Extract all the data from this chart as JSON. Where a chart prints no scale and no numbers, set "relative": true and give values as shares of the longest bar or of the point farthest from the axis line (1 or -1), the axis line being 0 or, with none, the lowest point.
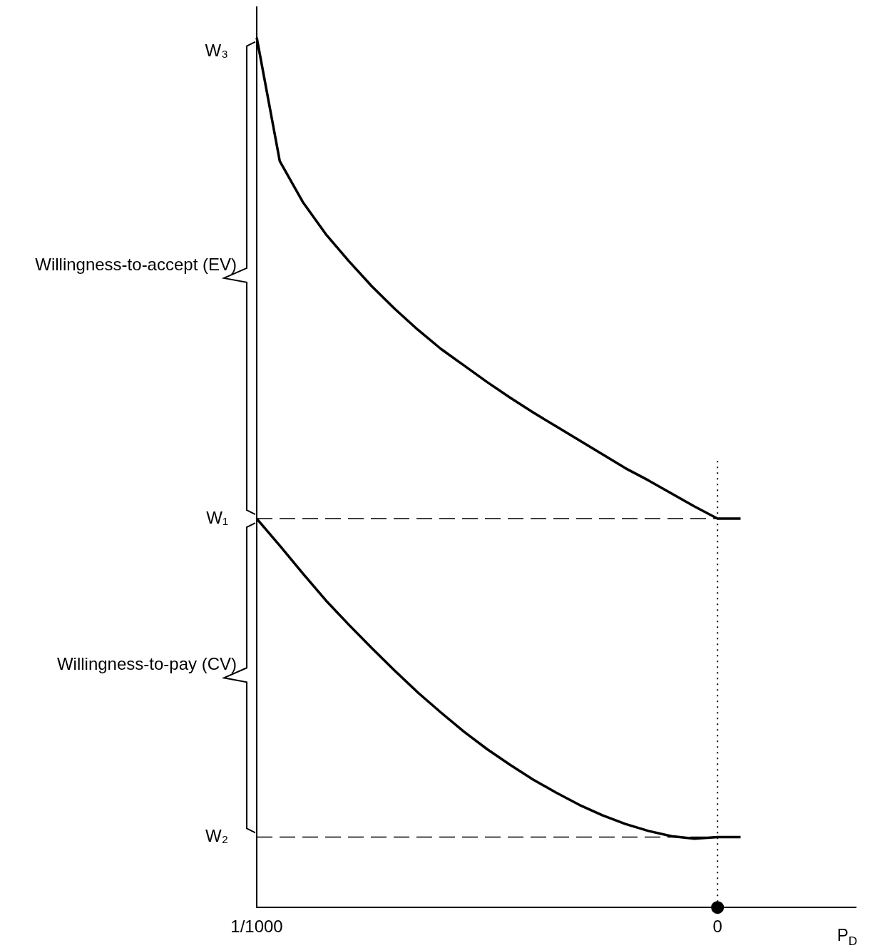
{
  "chart_data": {
    "type": "line",
    "relative": true,
    "xlabel": "P$_{D}$",
    "categories": [
      "1/1000",
      null,
      null,
      null,
      null,
      null,
      null,
      null,
      null,
      null,
      null,
      null,
      null,
      null,
      null,
      null,
      null,
      null,
      null,
      null,
      "0",
      null,
      null,
      null,
      null,
      null,
      null
    ],
    "tick_labels": "x",
    "grid": false,
    "legend": false,
    "series": [
      {
        "color": "#000000",
        "values": [
          1,
          0.858,
          0.811,
          0.774,
          0.743,
          0.714,
          0.688,
          0.664,
          0.642,
          0.623,
          0.604,
          0.586,
          0.569,
          0.553,
          0.537,
          0.521,
          0.505,
          0.491,
          0.476,
          0.461,
          0.447,
          0.447,
          null,
          null,
          null,
          null,
          null
        ]
      },
      {
        "color": "#000000",
        "values": [
          0.447,
          0.416,
          0.384,
          0.353,
          0.325,
          0.298,
          0.272,
          0.247,
          0.224,
          0.202,
          0.182,
          0.164,
          0.147,
          0.132,
          0.118,
          0.106,
          0.096,
          0.088,
          0.082,
          0.079,
          0.081,
          0.081,
          null,
          null,
          null,
          null,
          null
        ]
      },
      {
        "type": "scatter",
        "color": "#000000",
        "marker": "circle",
        "x": [
          "0"
        ],
        "values": [
          0
        ]
      }
    ],
    "ref_lines": [
      {
        "axis": "y",
        "value": 0.447,
        "label": "W₁",
        "line_style": "dashed"
      },
      {
        "axis": "y",
        "value": 0.081,
        "label": "W₂",
        "line_style": "dashed"
      },
      {
        "axis": "x",
        "value": "0",
        "line_style": "dotted"
      }
    ],
    "annotations": [
      {
        "text": "W₃",
        "x": "1/1000",
        "y": 1
      },
      "Willingness-to-accept (EV)",
      "Willingness-to-pay (CV)"
    ]
  }
}
